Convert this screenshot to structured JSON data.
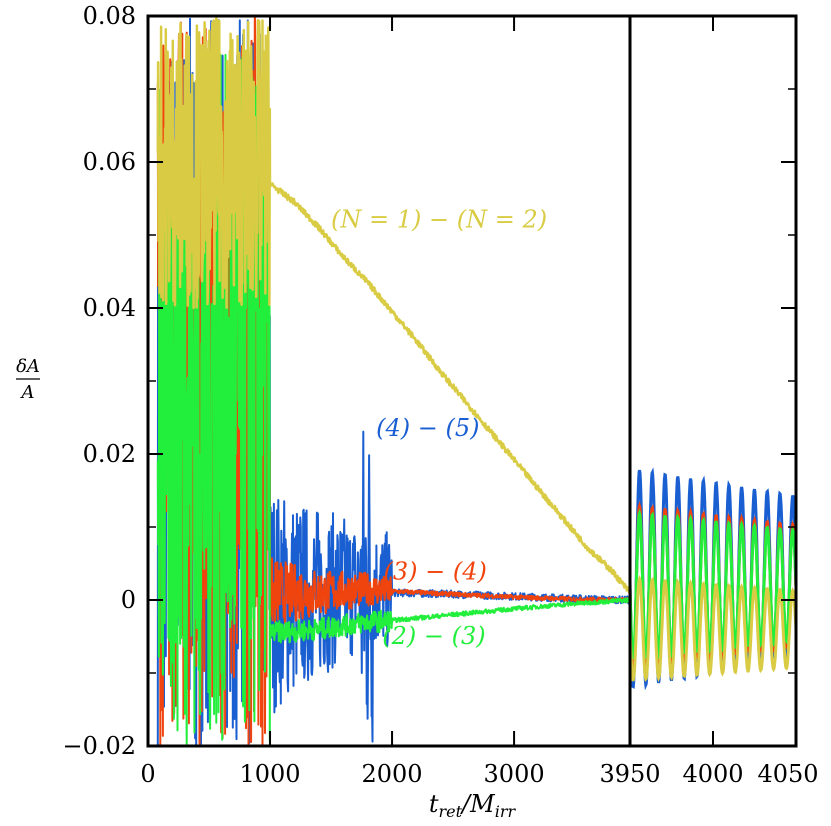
{
  "chart_data": {
    "type": "line",
    "title": "",
    "xlabel": "t_ret / M_irr",
    "ylabel": "δA / A",
    "ylim": [
      -0.02,
      0.08
    ],
    "panels": [
      {
        "name": "left",
        "xlim": [
          0,
          3950
        ],
        "x_ticks": [
          0,
          1000,
          2000,
          3000,
          3950
        ],
        "x_tick_labels": [
          "0",
          "1000",
          "2000",
          "3000",
          "3950"
        ]
      },
      {
        "name": "right",
        "xlim": [
          3950,
          4050
        ],
        "x_ticks": [
          4000,
          4050
        ],
        "x_tick_labels": [
          "4000",
          "4050"
        ]
      }
    ],
    "y_ticks": [
      -0.02,
      0,
      0.02,
      0.04,
      0.06,
      0.08
    ],
    "y_tick_labels": [
      "−0.02",
      "0",
      "0.02",
      "0.04",
      "0.06",
      "0.08"
    ],
    "grid": false,
    "series": [
      {
        "label": "(N = 1) − (N = 2)",
        "color": "#d9cc44",
        "noisy_until": 1000,
        "noise_band": [
          0.04,
          0.08
        ],
        "x": [
          1000,
          1200,
          1400,
          1600,
          1800,
          2000,
          2200,
          2400,
          2600,
          2800,
          3000,
          3200,
          3400,
          3600,
          3800,
          3950
        ],
        "y": [
          0.057,
          0.0545,
          0.051,
          0.047,
          0.0435,
          0.0395,
          0.0355,
          0.0312,
          0.0272,
          0.0232,
          0.0192,
          0.0152,
          0.0112,
          0.0072,
          0.004,
          0.001
        ],
        "right_panel": {
          "center": -0.004,
          "amplitude": 0.007,
          "cycles": 13
        }
      },
      {
        "label": "(4) − (5)",
        "color": "#1a5fd1",
        "noisy_until": 1000,
        "noise_band": [
          -0.02,
          0.08
        ],
        "x": [
          1000,
          1400,
          1800,
          2000,
          2500,
          3000,
          3500,
          3950
        ],
        "y": [
          0.0,
          0.001,
          0.002,
          0.001,
          0.0008,
          0.0005,
          0.0002,
          0.0
        ],
        "right_panel": {
          "center": 0.003,
          "amplitude": 0.015,
          "cycles": 13
        }
      },
      {
        "label": "(3) − (4)",
        "color": "#f0440e",
        "noisy_until": 1000,
        "noise_band": [
          -0.02,
          0.08
        ],
        "x": [
          1000,
          1400,
          1800,
          2000,
          2500,
          3000,
          3500,
          3950
        ],
        "y": [
          0.001,
          0.001,
          0.0015,
          0.0012,
          0.0008,
          0.0004,
          0.0001,
          0.0
        ],
        "right_panel": {
          "center": 0.002,
          "amplitude": 0.011,
          "cycles": 13
        }
      },
      {
        "label": "(2) − (3)",
        "color": "#22ee3c",
        "noisy_until": 1000,
        "noise_band": [
          -0.02,
          0.075
        ],
        "x": [
          1000,
          1400,
          1800,
          2000,
          2500,
          3000,
          3500,
          3950
        ],
        "y": [
          -0.0045,
          -0.004,
          -0.003,
          -0.0028,
          -0.002,
          -0.0012,
          -0.0005,
          0.0
        ],
        "right_panel": {
          "center": 0.002,
          "amplitude": 0.01,
          "cycles": 13
        }
      }
    ],
    "annotations": [
      {
        "text": "(N = 1) − (N = 2)",
        "series": 0,
        "x": 1500,
        "y": 0.051
      },
      {
        "text": "(4) − (5)",
        "series": 1,
        "x": 1870,
        "y": 0.0225
      },
      {
        "text": "(3) − (4)",
        "series": 2,
        "x": 1930,
        "y": 0.0028
      },
      {
        "text": "(2) − (3)",
        "series": 3,
        "x": 1920,
        "y": -0.006
      }
    ]
  }
}
